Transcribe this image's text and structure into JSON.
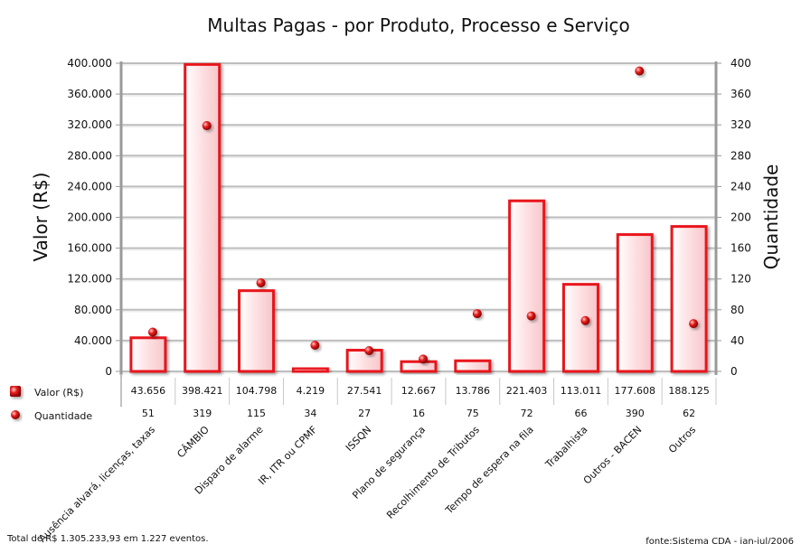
{
  "chart_data": {
    "type": "bar",
    "title": "Multas Pagas - por Produto, Processo e Serviço",
    "ylabel_left": "Valor (R$)",
    "ylabel_right": "Quantidade",
    "ylim_left": [
      0,
      400000
    ],
    "ylim_right": [
      0,
      400
    ],
    "left_ticks": [
      0,
      40000,
      80000,
      120000,
      160000,
      200000,
      240000,
      280000,
      320000,
      360000,
      400000
    ],
    "left_tick_labels": [
      "0",
      "40.000",
      "80.000",
      "120.000",
      "160.000",
      "200.000",
      "240.000",
      "280.000",
      "320.000",
      "360.000",
      "400.000"
    ],
    "right_ticks": [
      0,
      40,
      80,
      120,
      160,
      200,
      240,
      280,
      320,
      360,
      400
    ],
    "right_tick_labels": [
      "0",
      "40",
      "80",
      "120",
      "160",
      "200",
      "240",
      "280",
      "320",
      "360",
      "400"
    ],
    "categories": [
      "Ausência alvará, licenças, taxas",
      "CÂMBIO",
      "Disparo de alarme",
      "IR, ITR ou CPMF",
      "ISSQN",
      "Plano de segurança",
      "Recolhimento de Tributos",
      "Tempo de espera na fila",
      "Trabalhista",
      "Outros - BACEN",
      "Outros"
    ],
    "series": [
      {
        "name": "Valor (R$)",
        "type": "bar",
        "axis": "left",
        "values": [
          43656,
          398421,
          104798,
          4219,
          27541,
          12667,
          13786,
          221403,
          113011,
          177608,
          188125
        ],
        "labels": [
          "43.656",
          "398.421",
          "104.798",
          "4.219",
          "27.541",
          "12.667",
          "13.786",
          "221.403",
          "113.011",
          "177.608",
          "188.125"
        ]
      },
      {
        "name": "Quantidade",
        "type": "scatter",
        "axis": "right",
        "values": [
          51,
          319,
          115,
          34,
          27,
          16,
          75,
          72,
          66,
          390,
          62
        ],
        "labels": [
          "51",
          "319",
          "115",
          "34",
          "27",
          "16",
          "75",
          "72",
          "66",
          "390",
          "62"
        ]
      }
    ],
    "legend_position": "bottom-left",
    "grid": true,
    "colors": {
      "bar_fill": "#fde0e2",
      "bar_stroke": "#e8141c",
      "point": "#e01010"
    }
  },
  "footer": {
    "left": "Total de R$ 1.305.233,93 em 1.227 eventos.",
    "right": "fonte:Sistema CDA - jan-jul/2006"
  }
}
